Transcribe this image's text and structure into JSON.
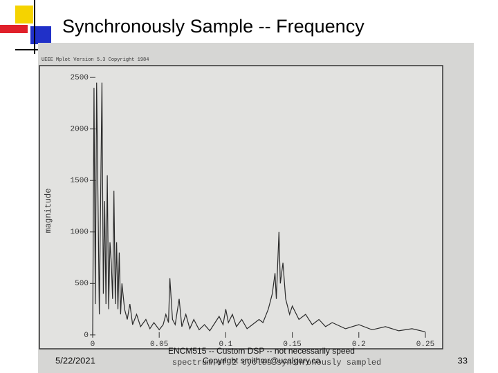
{
  "slide": {
    "title": "Synchronously Sample -- Frequency",
    "date": "5/22/2021",
    "footer": "ENCM515 -- Custom DSP -- not necessarily speed",
    "copyright": "Copyright smithmr@ucalgary.ca",
    "page_number": "33"
  },
  "chart_data": {
    "type": "line",
    "header": "UEEE Mplot Version 5.3 Copyright 1984",
    "y_label": "magnitude",
    "x_label": "spectrum of 2 cycles synchronously sampled",
    "color": "#2a2a2a",
    "x": [
      0,
      0.001,
      0.002,
      0.003,
      0.005,
      0.007,
      0.008,
      0.009,
      0.01,
      0.011,
      0.012,
      0.013,
      0.014,
      0.015,
      0.016,
      0.017,
      0.018,
      0.019,
      0.02,
      0.021,
      0.022,
      0.024,
      0.026,
      0.028,
      0.03,
      0.033,
      0.036,
      0.04,
      0.043,
      0.046,
      0.05,
      0.053,
      0.055,
      0.057,
      0.058,
      0.06,
      0.062,
      0.065,
      0.067,
      0.07,
      0.073,
      0.076,
      0.08,
      0.084,
      0.088,
      0.092,
      0.095,
      0.098,
      0.1,
      0.102,
      0.105,
      0.108,
      0.112,
      0.116,
      0.12,
      0.125,
      0.128,
      0.132,
      0.135,
      0.137,
      0.138,
      0.14,
      0.141,
      0.143,
      0.145,
      0.148,
      0.15,
      0.155,
      0.16,
      0.165,
      0.17,
      0.175,
      0.18,
      0.19,
      0.2,
      0.21,
      0.22,
      0.23,
      0.24,
      0.25
    ],
    "values": [
      0,
      2400,
      300,
      2450,
      200,
      2450,
      400,
      1300,
      300,
      1550,
      250,
      900,
      700,
      350,
      1400,
      300,
      900,
      250,
      800,
      200,
      500,
      250,
      150,
      300,
      100,
      200,
      80,
      150,
      60,
      120,
      50,
      100,
      200,
      120,
      550,
      150,
      100,
      350,
      80,
      200,
      60,
      150,
      50,
      100,
      40,
      120,
      180,
      100,
      250,
      120,
      200,
      80,
      150,
      60,
      100,
      150,
      120,
      250,
      400,
      600,
      350,
      1000,
      500,
      700,
      350,
      200,
      280,
      150,
      200,
      100,
      150,
      80,
      120,
      60,
      100,
      50,
      80,
      40,
      60,
      30
    ],
    "xlim": [
      -0.04,
      0.263
    ],
    "ylim": [
      -135,
      2615
    ],
    "xticks": [
      0,
      0.05,
      0.1,
      0.15,
      0.2,
      0.25
    ],
    "yticks": [
      0,
      500,
      1000,
      1500,
      2000,
      2500
    ]
  }
}
